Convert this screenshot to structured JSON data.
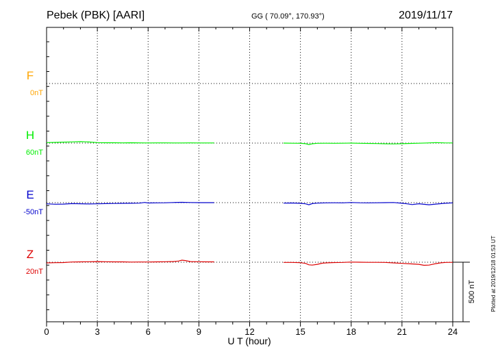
{
  "header": {
    "station": "Pebek (PBK)  [AARI]",
    "coords": "GG ( 70.09°, 170.93°)",
    "date": "2019/11/17"
  },
  "footer": {
    "plotted": "Plotted at 2019/12/18 01:53 UT"
  },
  "chart_data": {
    "type": "line",
    "title": "Pebek (PBK)  [AARI]",
    "xlabel": "U T (hour)",
    "xlim": [
      0,
      24
    ],
    "xticks": [
      "0",
      "3",
      "6",
      "9",
      "12",
      "15",
      "18",
      "21",
      "24"
    ],
    "grid": true,
    "scale_bar": {
      "label": "500 nT",
      "value_nT": 500
    },
    "baseline_step_nT": 350,
    "series": [
      {
        "name": "F",
        "offset": "0nT",
        "color": "#ffa500",
        "level": 3,
        "segments": []
      },
      {
        "name": "H",
        "offset": "60nT",
        "color": "#00ee00",
        "level": 2,
        "segments": [
          {
            "x": [
              0,
              0.5,
              1,
              1.5,
              2,
              2.5,
              3,
              3.5,
              4,
              4.5,
              5,
              5.5,
              6,
              6.5,
              7,
              7.5,
              8,
              8.5,
              9,
              9.5,
              9.9
            ],
            "y": [
              4,
              6,
              8,
              10,
              12,
              9,
              4,
              3,
              3,
              2,
              3,
              2,
              1,
              2,
              2,
              1,
              1,
              2,
              1,
              1,
              1
            ]
          },
          {
            "x": [
              14,
              14.5,
              15,
              15.3,
              15.5,
              15.7,
              16,
              16.5,
              17,
              17.5,
              18,
              18.5,
              19,
              19.5,
              20,
              20.5,
              21,
              21.5,
              22,
              22.5,
              23,
              23.5,
              24
            ],
            "y": [
              0,
              -1,
              -2,
              -5,
              -12,
              -6,
              -2,
              -1,
              -2,
              -1,
              0,
              -2,
              -3,
              -4,
              -6,
              -7,
              -5,
              -3,
              -1,
              1,
              4,
              2,
              1
            ]
          }
        ]
      },
      {
        "name": "E",
        "offset": "-50nT",
        "color": "#0000cc",
        "level": 1,
        "segments": [
          {
            "x": [
              0,
              0.5,
              1,
              1.5,
              2,
              2.5,
              3,
              3.5,
              4,
              4.5,
              5,
              5.5,
              5.8,
              6,
              6.5,
              7,
              7.5,
              8,
              8.5,
              9,
              9.5,
              9.9
            ],
            "y": [
              -10,
              -13,
              -12,
              -8,
              -9,
              -11,
              -10,
              -8,
              -7,
              -6,
              -5,
              -4,
              2,
              -3,
              -2,
              -1,
              1,
              3,
              1,
              0,
              0,
              0
            ]
          },
          {
            "x": [
              14,
              14.5,
              15,
              15.3,
              15.5,
              15.7,
              16,
              16.5,
              17,
              17.5,
              18,
              18.5,
              19,
              19.5,
              20,
              20.5,
              21,
              21.3,
              21.6,
              22,
              22.3,
              22.6,
              23,
              23.5,
              24
            ],
            "y": [
              -4,
              -3,
              -6,
              -10,
              -18,
              -8,
              -4,
              -2,
              -1,
              -2,
              1,
              -1,
              -2,
              -1,
              0,
              1,
              -5,
              -10,
              -16,
              -9,
              -14,
              -18,
              -12,
              -6,
              -2
            ]
          }
        ]
      },
      {
        "name": "Z",
        "offset": "20nT",
        "color": "#dd0000",
        "level": 0,
        "segments": [
          {
            "x": [
              0,
              0.5,
              1,
              1.5,
              2,
              2.5,
              3,
              3.5,
              4,
              4.5,
              5,
              5.5,
              6,
              6.5,
              7,
              7.5,
              7.8,
              8,
              8.2,
              8.5,
              9,
              9.5,
              9.9
            ],
            "y": [
              -6,
              -4,
              -3,
              2,
              3,
              4,
              5,
              4,
              3,
              3,
              1,
              2,
              2,
              3,
              4,
              6,
              10,
              17,
              14,
              5,
              4,
              3,
              3
            ]
          },
          {
            "x": [
              14,
              14.5,
              15,
              15.3,
              15.5,
              15.7,
              16,
              16.3,
              16.6,
              17,
              17.5,
              18,
              18.5,
              19,
              19.5,
              20,
              20.5,
              21,
              21.5,
              22,
              22.3,
              22.6,
              23,
              23.3,
              23.6,
              24
            ],
            "y": [
              -2,
              -2,
              -4,
              -10,
              -22,
              -24,
              -18,
              -8,
              -5,
              -3,
              -2,
              1,
              0,
              -1,
              -1,
              -2,
              -6,
              -10,
              -14,
              -18,
              -26,
              -24,
              -12,
              -5,
              -2,
              -1
            ]
          }
        ]
      }
    ]
  }
}
